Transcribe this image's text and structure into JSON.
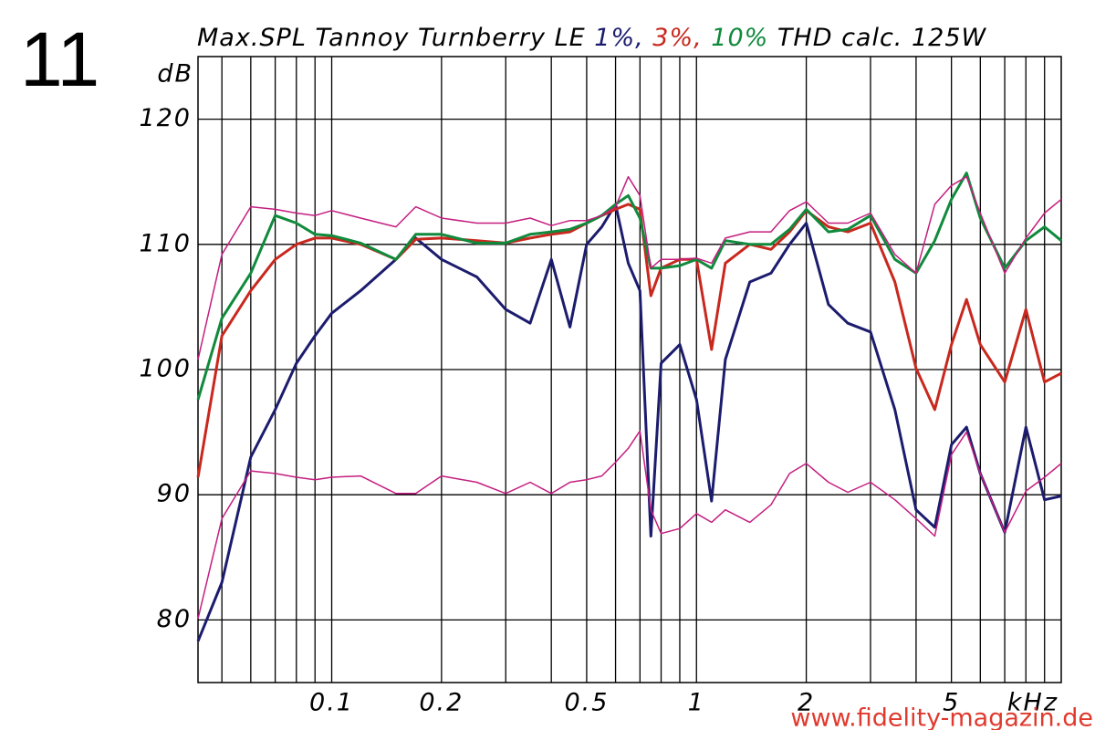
{
  "figure_number": "11",
  "watermark": "www.fidelity-magazin.de",
  "chart_data": {
    "type": "line",
    "title": "Max.SPL Tannoy Turnberry LE",
    "title_suffix": "THD calc. 125W",
    "y_label": "dB",
    "x_label": "kHz",
    "xscale": "log",
    "xlim": [
      0.043,
      10
    ],
    "ylim": [
      75,
      125
    ],
    "xticks": [
      0.1,
      0.2,
      0.5,
      1,
      2,
      5
    ],
    "yticks": [
      80,
      90,
      100,
      110,
      120
    ],
    "xgrid": [
      0.05,
      0.06,
      0.07,
      0.08,
      0.09,
      0.1,
      0.2,
      0.3,
      0.4,
      0.5,
      0.6,
      0.7,
      0.8,
      0.9,
      1,
      2,
      3,
      4,
      5,
      6,
      7,
      8,
      9
    ],
    "grid": true,
    "x": [
      0.043,
      0.05,
      0.06,
      0.07,
      0.08,
      0.09,
      0.1,
      0.12,
      0.15,
      0.17,
      0.2,
      0.25,
      0.3,
      0.35,
      0.4,
      0.45,
      0.5,
      0.55,
      0.6,
      0.65,
      0.7,
      0.75,
      0.8,
      0.9,
      1.0,
      1.1,
      1.2,
      1.4,
      1.6,
      1.8,
      2.0,
      2.3,
      2.6,
      3.0,
      3.5,
      4.0,
      4.5,
      5.0,
      5.5,
      6.0,
      7.0,
      8.0,
      9.0,
      10
    ],
    "series": [
      {
        "name": "1%,",
        "color": "#1c1c6e",
        "width": 3,
        "values": [
          78.3,
          83,
          93,
          96.8,
          100.5,
          102.7,
          104.5,
          106.3,
          108.8,
          110.5,
          108.8,
          107.4,
          104.8,
          103.7,
          108.8,
          103.4,
          110,
          111.4,
          113.2,
          108.5,
          106.3,
          86.7,
          100.5,
          102,
          97.6,
          89.5,
          100.8,
          107,
          107.7,
          110,
          111.7,
          105.2,
          103.7,
          103,
          96.8,
          88.8,
          87.4,
          94,
          95.4,
          91.7,
          87,
          95.4,
          89.6,
          89.9
        ]
      },
      {
        "name": "3%,",
        "color": "#c8281e",
        "width": 3,
        "values": [
          91.4,
          102.7,
          106.3,
          108.8,
          110,
          110.5,
          110.5,
          110,
          108.8,
          110.4,
          110.5,
          110.3,
          110.1,
          110.5,
          110.8,
          111,
          111.7,
          112.3,
          112.8,
          113.2,
          112.8,
          105.9,
          108.1,
          108.8,
          108.8,
          101.6,
          108.5,
          110,
          109.6,
          111,
          112.7,
          111.4,
          111,
          111.7,
          107,
          100.1,
          96.8,
          102,
          105.6,
          102,
          99,
          104.8,
          99,
          99.7
        ]
      },
      {
        "name": "10%",
        "color": "#108a3c",
        "width": 3,
        "values": [
          97.6,
          104.1,
          107.7,
          112.3,
          111.7,
          110.8,
          110.7,
          110.1,
          108.8,
          110.8,
          110.8,
          110.1,
          110.1,
          110.8,
          111,
          111.2,
          111.7,
          112.3,
          113.2,
          113.9,
          112.1,
          108.1,
          108.1,
          108.3,
          108.8,
          108.1,
          110.3,
          110,
          110,
          111.2,
          112.8,
          111,
          111.2,
          112.3,
          108.8,
          107.7,
          110.3,
          113.6,
          115.7,
          112.1,
          108.1,
          110.3,
          111.4,
          110.3
        ]
      },
      {
        "color": "#c41e80",
        "width": 1.5,
        "values": [
          100.8,
          109.2,
          113,
          112.8,
          112.5,
          112.3,
          112.7,
          112.1,
          111.4,
          113,
          112.1,
          111.7,
          111.7,
          112.1,
          111.5,
          111.9,
          111.9,
          112.3,
          113,
          115.4,
          113.9,
          108.1,
          108.8,
          108.8,
          108.9,
          108.5,
          110.5,
          111,
          111,
          112.7,
          113.4,
          111.7,
          111.7,
          112.5,
          109.2,
          107.7,
          113.2,
          114.7,
          115.4,
          112.5,
          107.7,
          110.5,
          112.5,
          113.6
        ]
      },
      {
        "color": "#c41e80",
        "width": 1.5,
        "values": [
          80.1,
          88.1,
          91.9,
          91.7,
          91.4,
          91.2,
          91.4,
          91.5,
          90.1,
          90.1,
          91.5,
          91,
          90.1,
          91,
          90.1,
          91,
          91.2,
          91.5,
          92.6,
          93.7,
          95.1,
          88.8,
          86.9,
          87.3,
          88.5,
          87.8,
          88.8,
          87.8,
          89.2,
          91.7,
          92.5,
          91,
          90.2,
          91,
          89.6,
          88.1,
          86.7,
          93.2,
          95,
          91.7,
          87,
          90.3,
          91.4,
          92.5
        ]
      }
    ]
  }
}
